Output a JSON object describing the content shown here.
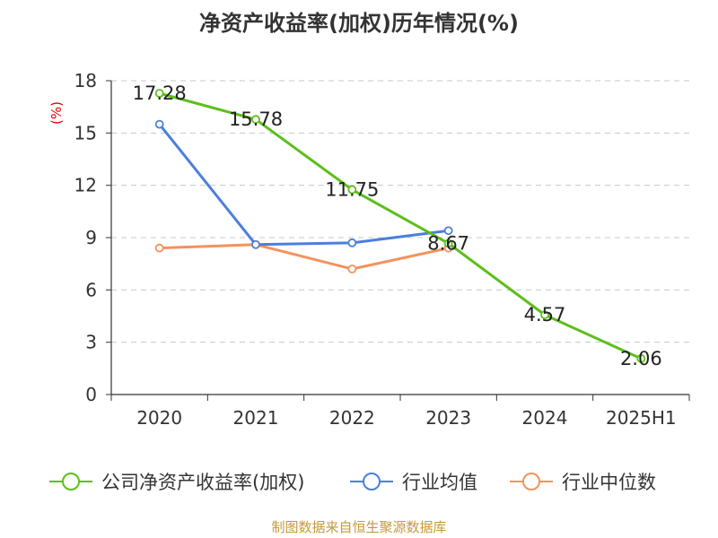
{
  "title": "净资产收益率(加权)历年情况(%)",
  "source": "制图数据来自恒生聚源数据库",
  "colors": {
    "company": "#5cbf1a",
    "industry_avg": "#4a7fdc",
    "industry_median": "#f3925c",
    "axis": "#333333",
    "grid": "#c8c8c8",
    "ylabel": "#e00000"
  },
  "chart_data": {
    "type": "line",
    "title": "净资产收益率(加权)历年情况(%)",
    "ylabel": "(%)",
    "xlabel": "",
    "categories": [
      "2020",
      "2021",
      "2022",
      "2023",
      "2024",
      "2025H1"
    ],
    "ylim": [
      0,
      18
    ],
    "yticks": [
      0,
      3,
      6,
      9,
      12,
      15,
      18
    ],
    "grid": "horizontal dashed",
    "legend_position": "bottom",
    "series": [
      {
        "name": "公司净资产收益率(加权)",
        "key": "company",
        "values": [
          17.28,
          15.78,
          11.75,
          8.67,
          4.57,
          2.06
        ],
        "data_labels": [
          "17.28",
          "15.78",
          "11.75",
          "8.67",
          "4.57",
          "2.06"
        ]
      },
      {
        "name": "行业均值",
        "key": "industry_avg",
        "values": [
          15.5,
          8.6,
          8.7,
          9.4,
          null,
          null
        ]
      },
      {
        "name": "行业中位数",
        "key": "industry_median",
        "values": [
          8.4,
          8.6,
          7.2,
          8.4,
          null,
          null
        ]
      }
    ]
  }
}
